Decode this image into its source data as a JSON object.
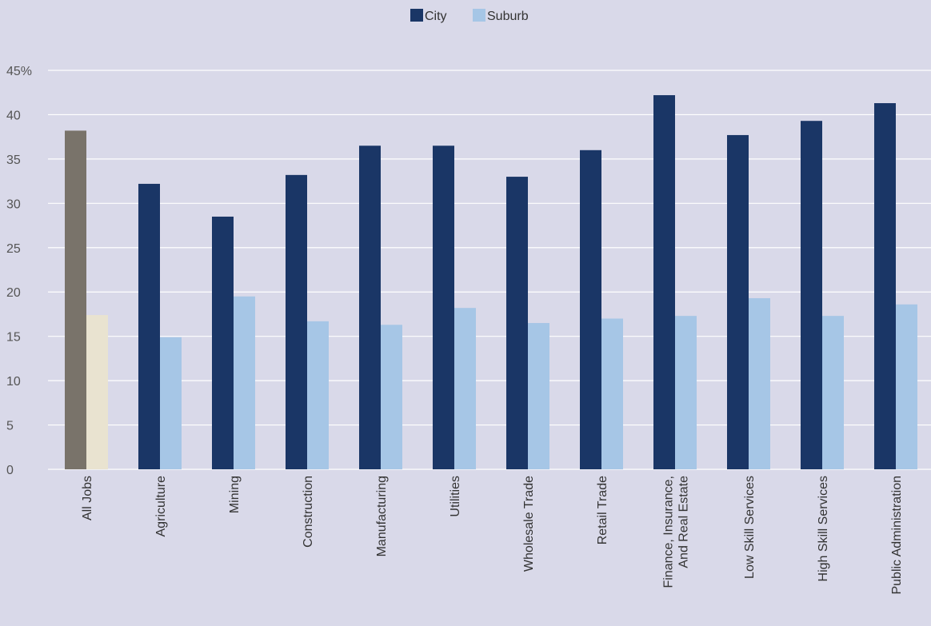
{
  "chart_data": {
    "type": "bar",
    "categories": [
      "All Jobs",
      "Agriculture",
      "Mining",
      "Construction",
      "Manufacturing",
      "Utilities",
      "Wholesale Trade",
      "Retail Trade",
      "Finance, Insurance,\nAnd Real Estate",
      "Low Skill Services",
      "High Skill Services",
      "Public Administration"
    ],
    "series": [
      {
        "name": "City",
        "values": [
          38.2,
          32.2,
          28.5,
          33.2,
          36.5,
          36.5,
          33.0,
          36.0,
          42.2,
          37.7,
          39.3,
          41.3
        ],
        "color": "#1a3666",
        "highlight_color": "#79736a"
      },
      {
        "name": "Suburb",
        "values": [
          17.4,
          14.9,
          19.5,
          16.7,
          16.3,
          18.2,
          16.5,
          17.0,
          17.3,
          19.3,
          17.3,
          18.6
        ],
        "color": "#a6c6e6",
        "highlight_color": "#e9e3d0"
      }
    ],
    "highlight_index": 0,
    "yticks": [
      "0",
      "5",
      "10",
      "15",
      "20",
      "25",
      "30",
      "35",
      "40",
      "45%"
    ],
    "ylim": [
      0,
      45
    ],
    "grid": true,
    "legend_position": "top-center",
    "title": "",
    "xlabel": "",
    "ylabel": ""
  }
}
